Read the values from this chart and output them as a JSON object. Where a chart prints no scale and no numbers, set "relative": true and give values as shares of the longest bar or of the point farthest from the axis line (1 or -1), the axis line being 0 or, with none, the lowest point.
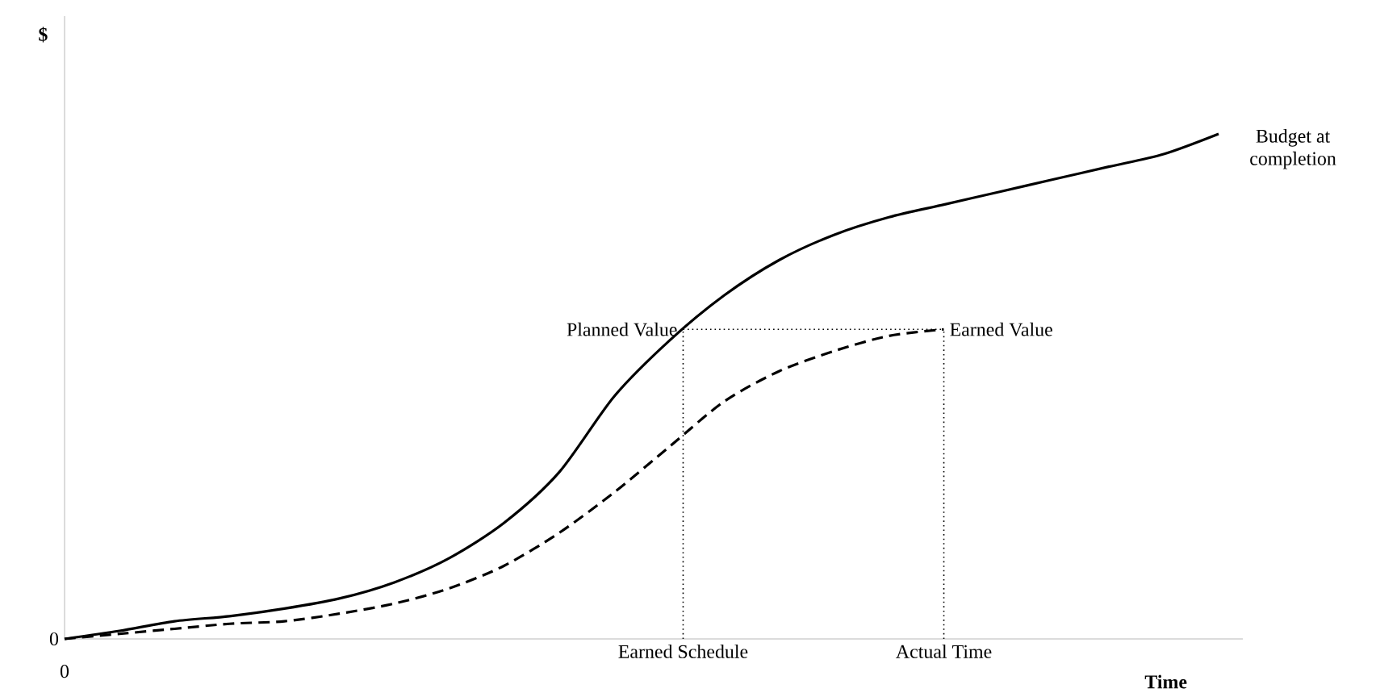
{
  "chart_data": {
    "type": "line",
    "relative": true,
    "ylabel": "$",
    "xlabel": "Time",
    "categories": [
      null,
      null,
      null,
      null,
      null,
      null,
      null,
      null,
      null,
      null,
      null,
      null,
      null,
      null,
      null,
      null,
      null,
      null,
      null,
      null,
      null,
      null
    ],
    "series": [
      {
        "color": "#000000",
        "line_style": "solid",
        "values": [
          0,
          0.016,
          0.035,
          0.045,
          0.06,
          0.08,
          0.112,
          0.16,
          0.23,
          0.33,
          0.48,
          0.59,
          0.68,
          0.75,
          0.8,
          0.835,
          0.86,
          0.885,
          0.91,
          0.935,
          0.96,
          1.0
        ]
      },
      {
        "color": "#000000",
        "line_style": "dashed",
        "values": [
          0,
          0.01,
          0.02,
          0.03,
          0.035,
          0.05,
          0.07,
          0.1,
          0.145,
          0.21,
          0.29,
          0.38,
          0.47,
          0.53,
          0.57,
          0.6,
          0.613,
          null,
          null,
          null,
          null,
          null
        ]
      }
    ],
    "annotations": [
      "0",
      "0",
      "Budget at completion",
      "Planned Value",
      "Earned Value",
      "Earned Schedule",
      "Actual Time"
    ]
  }
}
